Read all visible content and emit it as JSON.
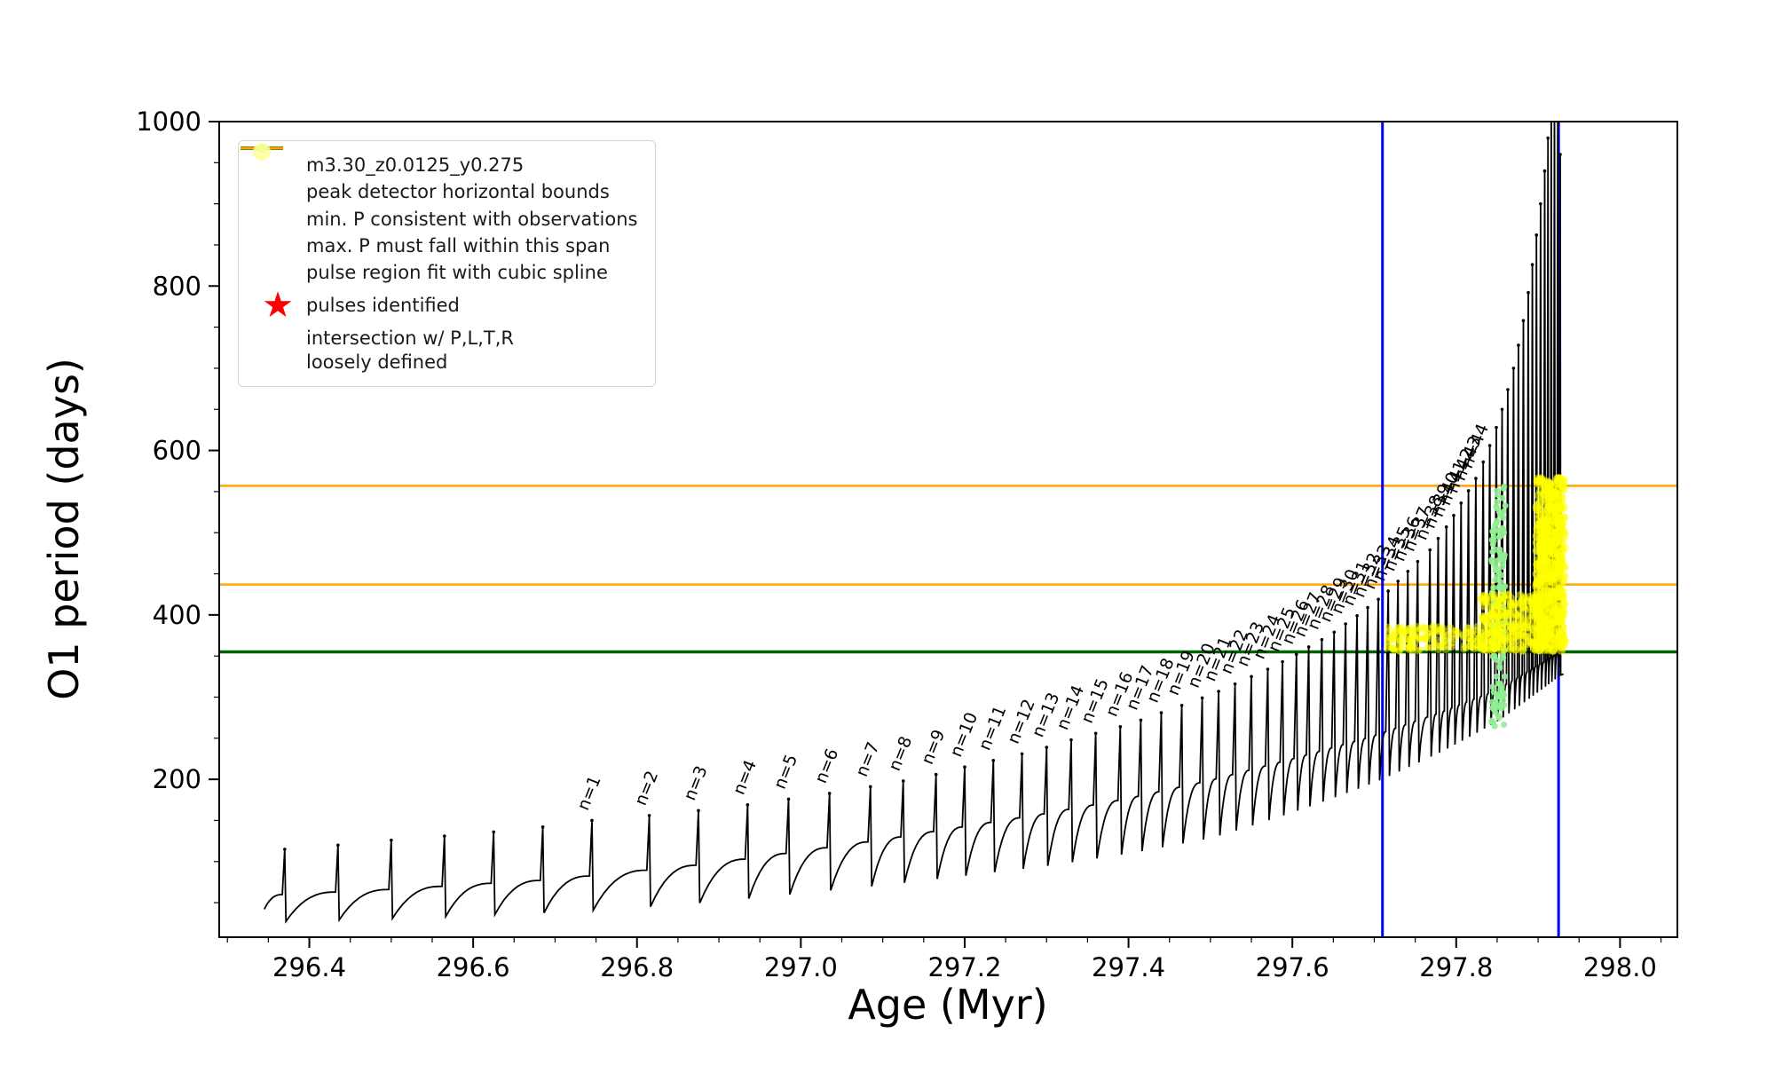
{
  "axes": {
    "xlabel": "Age (Myr)",
    "ylabel": "O1 period (days)",
    "xlim": [
      296.29,
      298.07
    ],
    "ylim": [
      8,
      1000
    ],
    "xticks": {
      "values": [
        296.4,
        296.6,
        296.8,
        297.0,
        297.2,
        297.4,
        297.6,
        297.8,
        298.0
      ],
      "labels": [
        "296.4",
        "296.6",
        "296.8",
        "297.0",
        "297.2",
        "297.4",
        "297.6",
        "297.8",
        "298.0"
      ]
    },
    "xminor_step": 0.05,
    "yticks": {
      "values": [
        200,
        400,
        600,
        800,
        1000
      ],
      "labels": [
        "200",
        "400",
        "600",
        "800",
        "1000"
      ]
    },
    "yminor_step": 50
  },
  "legend": {
    "entries": [
      {
        "marker": "line-dot",
        "color": "#000000",
        "label": "m3.30_z0.0125_y0.275"
      },
      {
        "marker": "line",
        "color": "#0000ff",
        "label": "peak detector horizontal bounds"
      },
      {
        "marker": "line",
        "color": "#006400",
        "label": "min. P consistent with observations"
      },
      {
        "marker": "line-thin",
        "color": "#ffa500",
        "label": "max. P must fall within this span"
      },
      {
        "marker": "dot",
        "color": "#90ee90",
        "label": "pulse region fit with cubic spline"
      },
      {
        "marker": "star",
        "color": "#ff0000",
        "label": "pulses identified"
      },
      {
        "marker": "big-dot",
        "color": "#ffff99",
        "label": "intersection w/ P,L,T,R\nloosely defined"
      }
    ]
  },
  "chart_data": {
    "type": "line",
    "title": "",
    "xlabel": "Age (Myr)",
    "ylabel": "O1 period (days)",
    "xlim": [
      296.29,
      298.07
    ],
    "ylim": [
      8,
      1000
    ],
    "series_name": "m3.30_z0.0125_y0.275",
    "legend_position": "upper left",
    "grid": false,
    "envelope": [
      [
        296.33,
        58
      ],
      [
        296.5,
        66
      ],
      [
        296.7,
        78
      ],
      [
        296.9,
        98
      ],
      [
        297.0,
        112
      ],
      [
        297.1,
        126
      ],
      [
        297.2,
        142
      ],
      [
        297.3,
        158
      ],
      [
        297.4,
        176
      ],
      [
        297.5,
        198
      ],
      [
        297.6,
        224
      ],
      [
        297.7,
        252
      ],
      [
        297.78,
        280
      ],
      [
        297.85,
        308
      ],
      [
        297.9,
        338
      ],
      [
        297.94,
        362
      ]
    ],
    "dip_fraction": [
      [
        296.33,
        0.45
      ],
      [
        296.8,
        0.5
      ],
      [
        297.0,
        0.55
      ],
      [
        297.3,
        0.6
      ],
      [
        297.5,
        0.65
      ],
      [
        297.7,
        0.78
      ],
      [
        297.85,
        0.88
      ],
      [
        297.94,
        0.93
      ]
    ],
    "pulses": [
      {
        "label": null,
        "x": 296.37,
        "peak": 115
      },
      {
        "label": null,
        "x": 296.435,
        "peak": 120
      },
      {
        "label": null,
        "x": 296.5,
        "peak": 126
      },
      {
        "label": null,
        "x": 296.565,
        "peak": 131
      },
      {
        "label": null,
        "x": 296.625,
        "peak": 136
      },
      {
        "label": null,
        "x": 296.685,
        "peak": 142
      },
      {
        "label": "n=1",
        "x": 296.745,
        "peak": 150
      },
      {
        "label": "n=2",
        "x": 296.815,
        "peak": 156
      },
      {
        "label": "n=3",
        "x": 296.875,
        "peak": 162
      },
      {
        "label": "n=4",
        "x": 296.935,
        "peak": 169
      },
      {
        "label": "n=5",
        "x": 296.985,
        "peak": 176
      },
      {
        "label": "n=6",
        "x": 297.035,
        "peak": 183
      },
      {
        "label": "n=7",
        "x": 297.085,
        "peak": 191
      },
      {
        "label": "n=8",
        "x": 297.125,
        "peak": 198
      },
      {
        "label": "n=9",
        "x": 297.165,
        "peak": 206
      },
      {
        "label": "n=10",
        "x": 297.2,
        "peak": 215
      },
      {
        "label": "n=11",
        "x": 297.235,
        "peak": 223
      },
      {
        "label": "n=12",
        "x": 297.27,
        "peak": 231
      },
      {
        "label": "n=13",
        "x": 297.3,
        "peak": 239
      },
      {
        "label": "n=14",
        "x": 297.33,
        "peak": 248
      },
      {
        "label": "n=15",
        "x": 297.36,
        "peak": 256
      },
      {
        "label": "n=16",
        "x": 297.39,
        "peak": 264
      },
      {
        "label": "n=17",
        "x": 297.415,
        "peak": 272
      },
      {
        "label": "n=18",
        "x": 297.44,
        "peak": 281
      },
      {
        "label": "n=19",
        "x": 297.465,
        "peak": 290
      },
      {
        "label": "n=20",
        "x": 297.49,
        "peak": 299
      },
      {
        "label": "n=21",
        "x": 297.51,
        "peak": 307
      },
      {
        "label": "n=22",
        "x": 297.53,
        "peak": 316
      },
      {
        "label": "n=23",
        "x": 297.55,
        "peak": 325
      },
      {
        "label": "n=24",
        "x": 297.57,
        "peak": 334
      },
      {
        "label": "n=25",
        "x": 297.588,
        "peak": 343
      },
      {
        "label": "n=26",
        "x": 297.605,
        "peak": 352
      },
      {
        "label": "n=27",
        "x": 297.62,
        "peak": 361
      },
      {
        "label": "n=28",
        "x": 297.636,
        "peak": 370
      },
      {
        "label": "n=29",
        "x": 297.651,
        "peak": 379
      },
      {
        "label": "n=30",
        "x": 297.665,
        "peak": 389
      },
      {
        "label": "n=31",
        "x": 297.679,
        "peak": 399
      },
      {
        "label": "n=32",
        "x": 297.692,
        "peak": 409
      },
      {
        "label": "n=33",
        "x": 297.705,
        "peak": 419
      },
      {
        "label": "n=34",
        "x": 297.717,
        "peak": 429
      },
      {
        "label": "n=35",
        "x": 297.729,
        "peak": 441
      },
      {
        "label": "n=36",
        "x": 297.741,
        "peak": 453
      },
      {
        "label": "n=37",
        "x": 297.753,
        "peak": 465
      },
      {
        "label": "n=38",
        "x": 297.768,
        "peak": 479
      },
      {
        "label": "n=39",
        "x": 297.778,
        "peak": 493
      },
      {
        "label": "n=40",
        "x": 297.788,
        "peak": 507
      },
      {
        "label": "n=41",
        "x": 297.797,
        "peak": 521
      },
      {
        "label": "n=42",
        "x": 297.806,
        "peak": 536
      },
      {
        "label": "n=43",
        "x": 297.815,
        "peak": 551
      },
      {
        "label": "n=44",
        "x": 297.824,
        "peak": 566
      },
      {
        "label": null,
        "x": 297.833,
        "peak": 586
      },
      {
        "label": null,
        "x": 297.841,
        "peak": 606
      },
      {
        "label": null,
        "x": 297.849,
        "peak": 628
      },
      {
        "label": null,
        "x": 297.856,
        "peak": 650
      },
      {
        "label": null,
        "x": 297.863,
        "peak": 674
      },
      {
        "label": null,
        "x": 297.87,
        "peak": 700
      },
      {
        "label": null,
        "x": 297.876,
        "peak": 728
      },
      {
        "label": null,
        "x": 297.882,
        "peak": 758
      },
      {
        "label": null,
        "x": 297.888,
        "peak": 792
      },
      {
        "label": null,
        "x": 297.893,
        "peak": 826
      },
      {
        "label": null,
        "x": 297.898,
        "peak": 862
      },
      {
        "label": null,
        "x": 297.903,
        "peak": 900
      },
      {
        "label": null,
        "x": 297.908,
        "peak": 940
      },
      {
        "label": null,
        "x": 297.912,
        "peak": 980
      },
      {
        "label": null,
        "x": 297.916,
        "peak": 1020
      },
      {
        "label": null,
        "x": 297.92,
        "peak": 1040
      },
      {
        "label": null,
        "x": 297.924,
        "peak": 1010
      },
      {
        "label": null,
        "x": 297.927,
        "peak": 960
      }
    ],
    "vlines": {
      "color": "#0000ff",
      "width": 3,
      "x": [
        297.71,
        297.925
      ]
    },
    "hlines": [
      {
        "color": "#006400",
        "width": 3.5,
        "y": 355
      },
      {
        "color": "#ffa500",
        "width": 2.5,
        "y": 557
      },
      {
        "color": "#ffa500",
        "width": 2.5,
        "y": 437
      }
    ],
    "scatter_clusters": [
      {
        "name": "spline-fit-region",
        "color": "#90ee90",
        "opacity": 0.9,
        "r": 3.5,
        "count": 140,
        "x": [
          297.843,
          297.86
        ],
        "y": [
          262,
          556
        ]
      },
      {
        "name": "intersection-band-left",
        "color": "#ffff00",
        "opacity": 0.45,
        "r": 4,
        "count": 170,
        "x": [
          297.715,
          297.83
        ],
        "y": [
          356,
          386
        ]
      },
      {
        "name": "intersection-band-right",
        "color": "#ffff00",
        "opacity": 0.5,
        "r": 4.5,
        "count": 260,
        "x": [
          297.83,
          297.902
        ],
        "y": [
          356,
          425
        ]
      },
      {
        "name": "intersection-column",
        "color": "#ffff00",
        "opacity": 0.55,
        "r": 5,
        "count": 520,
        "x": [
          297.898,
          297.932
        ],
        "y": [
          356,
          566
        ]
      }
    ]
  }
}
